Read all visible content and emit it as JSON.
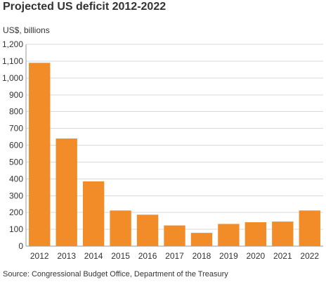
{
  "chart_data": {
    "type": "bar",
    "title": "Projected US deficit 2012-2022",
    "ylabel": "US$, billions",
    "xlabel": "",
    "source": "Source: Congressional Budget Office, Department of the Treasury",
    "categories": [
      "2012",
      "2013",
      "2014",
      "2015",
      "2016",
      "2017",
      "2018",
      "2019",
      "2020",
      "2021",
      "2022"
    ],
    "values": [
      1090,
      640,
      385,
      212,
      187,
      123,
      79,
      132,
      142,
      146,
      212
    ],
    "ylim": [
      0,
      1200
    ],
    "yticks": [
      0,
      100,
      200,
      300,
      400,
      500,
      600,
      700,
      800,
      900,
      1000,
      1100,
      1200
    ],
    "ytick_labels": [
      "0",
      "100",
      "200",
      "300",
      "400",
      "500",
      "600",
      "700",
      "800",
      "900",
      "1,000",
      "1,100",
      "1,200"
    ],
    "grid": true,
    "bar_color": "#f28c28",
    "grid_color": "#d9d9d9",
    "axis_color": "#999999"
  }
}
